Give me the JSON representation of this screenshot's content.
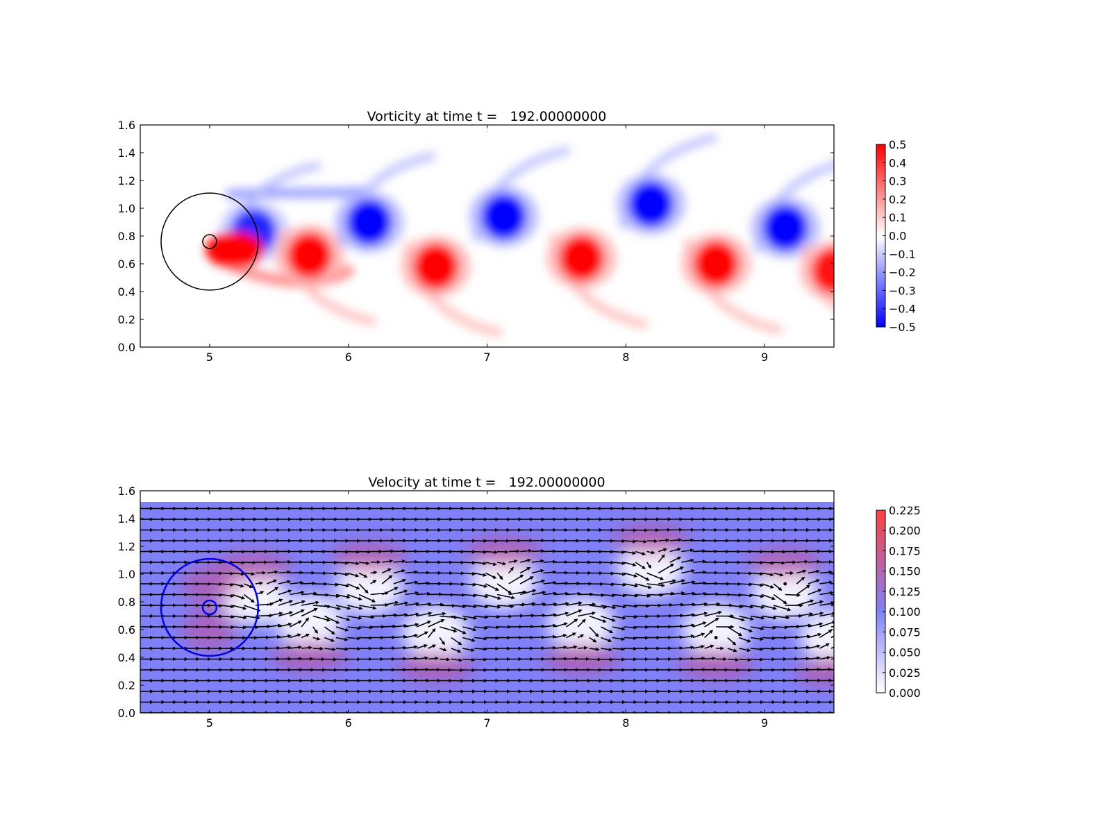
{
  "chart_data": [
    {
      "type": "heatmap",
      "title": "Vorticity at time t =   192.00000000",
      "xlabel": "",
      "ylabel": "",
      "xlim": [
        4.5,
        9.5
      ],
      "ylim": [
        0.0,
        1.6
      ],
      "x_ticks": [
        "5",
        "6",
        "7",
        "8",
        "9"
      ],
      "y_ticks": [
        "0.0",
        "0.2",
        "0.4",
        "0.6",
        "0.8",
        "1.0",
        "1.2",
        "1.4",
        "1.6"
      ],
      "colormap": "bwr",
      "colors": {
        "negative": "#0000ff",
        "zero": "#ffffff",
        "positive": "#ff0000"
      },
      "colorbar": {
        "range": [
          -0.5,
          0.5
        ],
        "ticks": [
          "0.5",
          "0.4",
          "0.3",
          "0.2",
          "0.1",
          "0.0",
          "−0.1",
          "−0.2",
          "−0.3",
          "−0.4",
          "−0.5"
        ]
      },
      "cylinder": {
        "center": [
          5.0,
          0.76
        ],
        "radius": 0.05
      },
      "outer_circle": {
        "center": [
          5.0,
          0.76
        ],
        "radius": 0.35
      },
      "vortices": [
        {
          "x": 5.32,
          "y": 0.83,
          "sign": -1,
          "strength": 0.8
        },
        {
          "x": 5.72,
          "y": 0.66,
          "sign": 1,
          "strength": 1.0
        },
        {
          "x": 6.15,
          "y": 0.9,
          "sign": -1,
          "strength": 1.0
        },
        {
          "x": 6.63,
          "y": 0.58,
          "sign": 1,
          "strength": 1.0
        },
        {
          "x": 7.12,
          "y": 0.94,
          "sign": -1,
          "strength": 1.0
        },
        {
          "x": 7.68,
          "y": 0.64,
          "sign": 1,
          "strength": 1.0
        },
        {
          "x": 8.18,
          "y": 1.03,
          "sign": -1,
          "strength": 1.0
        },
        {
          "x": 8.65,
          "y": 0.6,
          "sign": 1,
          "strength": 1.0
        },
        {
          "x": 9.15,
          "y": 0.86,
          "sign": -1,
          "strength": 1.0
        },
        {
          "x": 9.5,
          "y": 0.55,
          "sign": 1,
          "strength": 0.9
        }
      ]
    },
    {
      "type": "heatmap",
      "subtype": "quiver",
      "title": "Velocity at time t =   192.00000000",
      "xlabel": "",
      "ylabel": "",
      "xlim": [
        4.5,
        9.5
      ],
      "ylim": [
        0.0,
        1.6
      ],
      "data_top": 1.52,
      "x_ticks": [
        "5",
        "6",
        "7",
        "8",
        "9"
      ],
      "y_ticks": [
        "0.0",
        "0.2",
        "0.4",
        "0.6",
        "0.8",
        "1.0",
        "1.2",
        "1.4",
        "1.6"
      ],
      "colors": {
        "low": "#ffffff",
        "mid": "#8080f8",
        "high": "#ff4040",
        "arrow": "#000000"
      },
      "colorbar": {
        "range": [
          0.0,
          0.225
        ],
        "ticks": [
          "0.225",
          "0.200",
          "0.175",
          "0.150",
          "0.125",
          "0.100",
          "0.075",
          "0.050",
          "0.025",
          "0.000"
        ]
      },
      "cylinder": {
        "center": [
          5.0,
          0.76
        ],
        "radius": 0.05
      },
      "outer_circle": {
        "center": [
          5.0,
          0.76
        ],
        "radius": 0.35
      },
      "free_stream_speed": 0.1
    }
  ]
}
